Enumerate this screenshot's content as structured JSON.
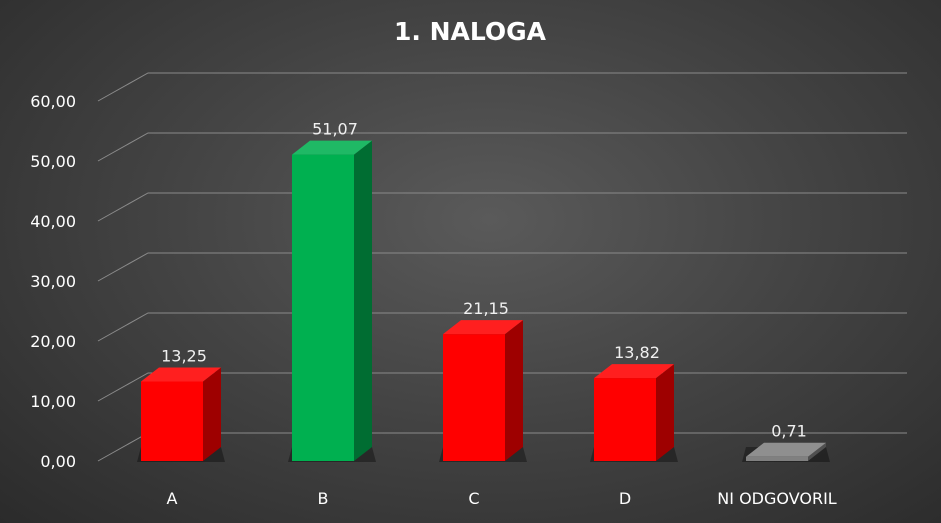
{
  "chart_data": {
    "type": "bar",
    "title": "1. NALOGA",
    "categories": [
      "A",
      "B",
      "C",
      "D",
      "NI ODGOVORIL"
    ],
    "values": [
      13.25,
      51.07,
      21.15,
      13.82,
      0.71
    ],
    "value_labels": [
      "13,25",
      "51,07",
      "21,15",
      "13,82",
      "0,71"
    ],
    "ylim": [
      0,
      60
    ],
    "yticks": [
      0,
      10,
      20,
      30,
      40,
      50,
      60
    ],
    "ytick_labels": [
      "0,00",
      "10,00",
      "20,00",
      "30,00",
      "40,00",
      "50,00",
      "60,00"
    ],
    "grid": true,
    "legend": "none",
    "bar_colors": [
      "#ff0000",
      "#00b050",
      "#ff0000",
      "#ff0000",
      "#808080"
    ]
  }
}
